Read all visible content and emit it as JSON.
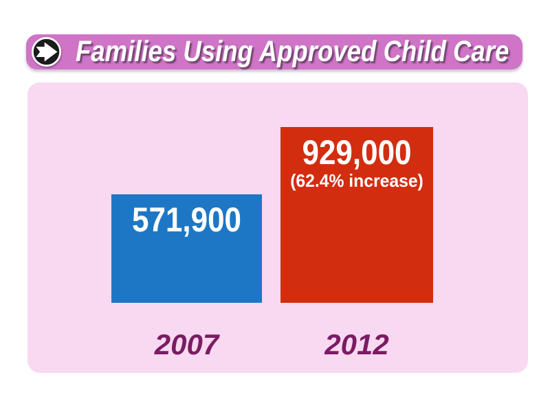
{
  "header": {
    "title": "Families Using Approved Child Care",
    "icon": "arrow-right-circle-icon",
    "bg_color": "#cf74c7",
    "text_color": "#ffffff"
  },
  "panel": {
    "bg_color": "#f8d9f1"
  },
  "chart_data": {
    "type": "bar",
    "title": "Families Using Approved Child Care",
    "categories": [
      "2007",
      "2012"
    ],
    "values": [
      571900,
      929000
    ],
    "bars": [
      {
        "category": "2007",
        "value": 571900,
        "label": "571,900",
        "note": "",
        "color": "#1e77c5"
      },
      {
        "category": "2012",
        "value": 929000,
        "label": "929,000",
        "note": "(62.4% increase)",
        "color": "#d32d10"
      }
    ],
    "xlabel": "",
    "ylabel": "",
    "ylim": [
      0,
      1000000
    ],
    "grid": false,
    "legend_position": "none",
    "value_label_color": "#ffffff",
    "category_label_color": "#7b1c63",
    "panel_bg_color": "#f8d9f1"
  }
}
